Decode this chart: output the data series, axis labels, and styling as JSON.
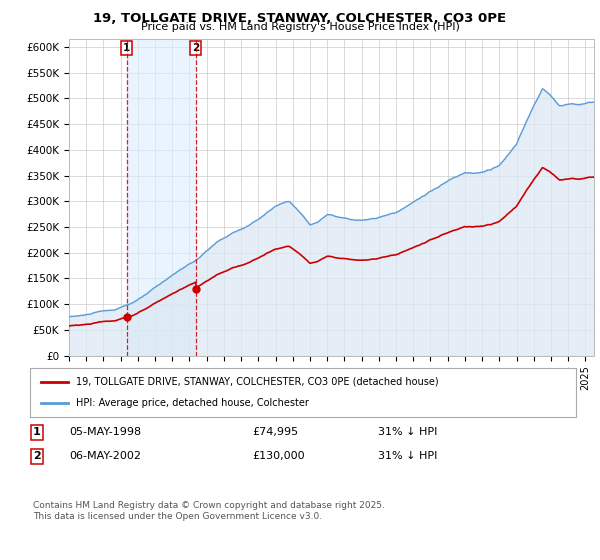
{
  "title": "19, TOLLGATE DRIVE, STANWAY, COLCHESTER, CO3 0PE",
  "subtitle": "Price paid vs. HM Land Registry's House Price Index (HPI)",
  "ylabel_ticks": [
    "£0",
    "£50K",
    "£100K",
    "£150K",
    "£200K",
    "£250K",
    "£300K",
    "£350K",
    "£400K",
    "£450K",
    "£500K",
    "£550K",
    "£600K"
  ],
  "ytick_values": [
    0,
    50000,
    100000,
    150000,
    200000,
    250000,
    300000,
    350000,
    400000,
    450000,
    500000,
    550000,
    600000
  ],
  "ylim": [
    0,
    615000
  ],
  "xlim_start": 1995.0,
  "xlim_end": 2025.5,
  "purchase1_date": 1998.35,
  "purchase1_price": 74995,
  "purchase2_date": 2002.35,
  "purchase2_price": 130000,
  "red_color": "#cc0000",
  "blue_color": "#5b9bd5",
  "blue_fill_color": "#dae8f5",
  "vline_color": "#cc0000",
  "shade_color": "#ddeeff",
  "legend_label_red": "19, TOLLGATE DRIVE, STANWAY, COLCHESTER, CO3 0PE (detached house)",
  "legend_label_blue": "HPI: Average price, detached house, Colchester",
  "note1_date": "05-MAY-1998",
  "note1_price": "£74,995",
  "note1_hpi": "31% ↓ HPI",
  "note2_date": "06-MAY-2002",
  "note2_price": "£130,000",
  "note2_hpi": "31% ↓ HPI",
  "footer": "Contains HM Land Registry data © Crown copyright and database right 2025.\nThis data is licensed under the Open Government Licence v3.0.",
  "background_color": "#ffffff"
}
